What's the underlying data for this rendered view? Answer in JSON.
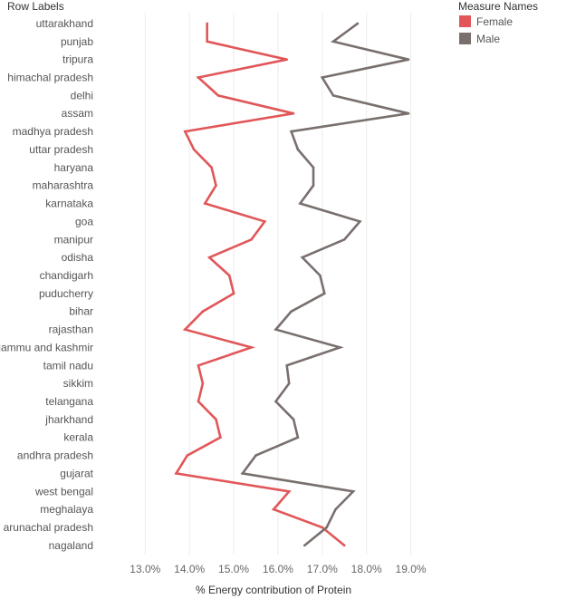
{
  "chart_data": {
    "type": "line",
    "row_header": "Row Labels",
    "xlabel": "% Energy contribution of Protein",
    "xlim": [
      12.4,
      19.95
    ],
    "x_ticks": [
      "13.0%",
      "14.0%",
      "15.0%",
      "16.0%",
      "17.0%",
      "18.0%",
      "19.0%"
    ],
    "x_tick_values": [
      13,
      14,
      15,
      16,
      17,
      18,
      19
    ],
    "grid": true,
    "legend_title": "Measure Names",
    "legend_position": "top-right",
    "categories": [
      "uttarakhand",
      "punjab",
      "tripura",
      "himachal pradesh",
      "delhi",
      "assam",
      "madhya pradesh",
      "uttar pradesh",
      "haryana",
      "maharashtra",
      "karnataka",
      "goa",
      "manipur",
      "odisha",
      "chandigarh",
      "puducherry",
      "bihar",
      "rajasthan",
      "jammu and kashmir",
      "tamil nadu",
      "sikkim",
      "telangana",
      "jharkhand",
      "kerala",
      "andhra pradesh",
      "gujarat",
      "west bengal",
      "meghalaya",
      "arunachal pradesh",
      "nagaland"
    ],
    "series": [
      {
        "name": "Female",
        "color": "#e15759",
        "values": [
          14.4,
          14.4,
          16.2,
          14.2,
          14.65,
          16.35,
          13.9,
          14.1,
          14.5,
          14.6,
          14.35,
          15.7,
          15.4,
          14.45,
          14.9,
          15.0,
          14.3,
          13.9,
          15.4,
          14.2,
          14.3,
          14.2,
          14.6,
          14.7,
          13.95,
          13.7,
          16.25,
          15.9,
          17.0,
          17.5
        ]
      },
      {
        "name": "Male",
        "color": "#79706e",
        "values": [
          17.8,
          17.25,
          18.95,
          17.0,
          17.25,
          18.95,
          16.3,
          16.45,
          16.8,
          16.8,
          16.5,
          17.85,
          17.5,
          16.55,
          16.95,
          17.05,
          16.3,
          15.95,
          17.4,
          16.2,
          16.25,
          15.95,
          16.35,
          16.45,
          15.5,
          15.2,
          17.7,
          17.3,
          17.1,
          16.6
        ]
      }
    ]
  }
}
